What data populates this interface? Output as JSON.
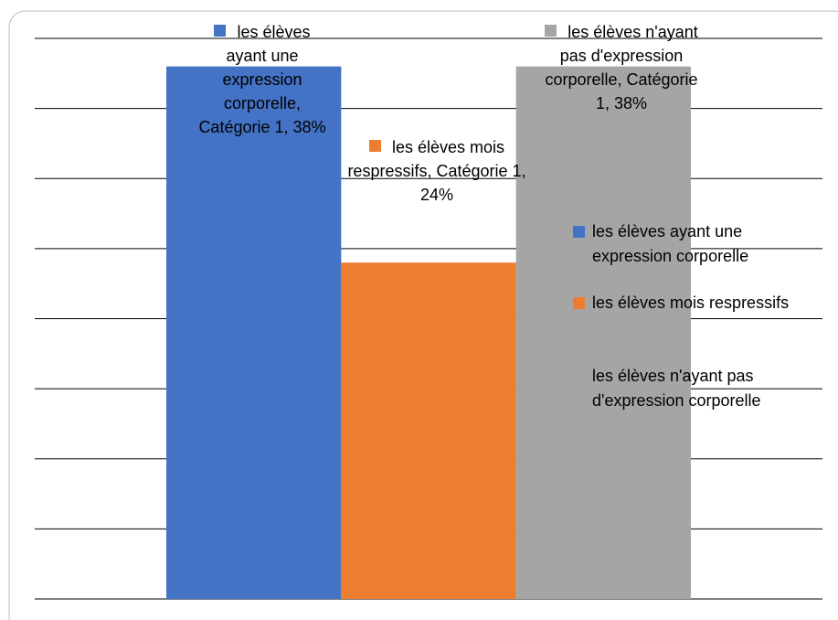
{
  "chart_data": {
    "type": "bar",
    "categories": [
      "Catégorie 1"
    ],
    "series": [
      {
        "name": "les élèves ayant une expression corporelle",
        "color": "#4472c4",
        "values": [
          38
        ],
        "value_labels": [
          "38%"
        ]
      },
      {
        "name": "les élèves mois respressifs",
        "color": "#ed7d31",
        "values": [
          24
        ],
        "value_labels": [
          "24%"
        ]
      },
      {
        "name": "les élèves n'ayant pas d'expression corporelle",
        "color": "#a5a5a5",
        "values": [
          38
        ],
        "value_labels": [
          "38%"
        ]
      }
    ],
    "ylim": [
      0,
      40
    ],
    "yticks": [
      0,
      5,
      10,
      15,
      20,
      25,
      30,
      35,
      40
    ],
    "grid": true,
    "legend": "right"
  }
}
